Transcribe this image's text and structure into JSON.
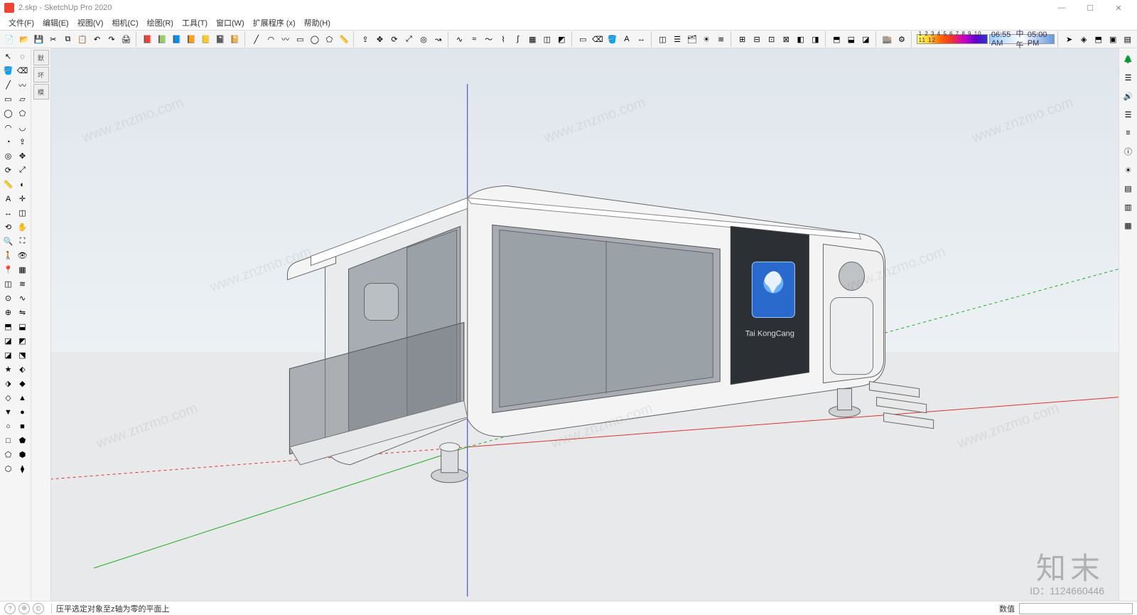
{
  "window": {
    "title": "2.skp - SketchUp Pro 2020",
    "controls": {
      "min": "—",
      "max": "☐",
      "close": "✕"
    }
  },
  "menu": {
    "items": [
      "文件(F)",
      "编辑(E)",
      "视图(V)",
      "相机(C)",
      "绘图(R)",
      "工具(T)",
      "窗口(W)",
      "扩展程序 (x)",
      "帮助(H)"
    ]
  },
  "toolbar_top": {
    "groups": [
      [
        "new",
        "open",
        "save",
        "cut",
        "copy",
        "paste",
        "undo",
        "redo",
        "print"
      ],
      [
        "book1",
        "book2",
        "book3",
        "book4",
        "book5",
        "book6",
        "book7"
      ],
      [
        "line",
        "arc",
        "freehand",
        "rect",
        "circle",
        "poly",
        "tape"
      ],
      [
        "push",
        "move",
        "rotate",
        "scale",
        "offset",
        "follow"
      ],
      [
        "curve1",
        "curve2",
        "curve3",
        "curve4",
        "curve5",
        "sandbox1",
        "sandbox2",
        "sandbox3"
      ],
      [
        "sel",
        "erase",
        "paint",
        "text",
        "dim"
      ],
      [
        "section",
        "layers",
        "outliner",
        "shadows",
        "fog"
      ],
      [
        "axis1",
        "axis2",
        "axis3",
        "axis4",
        "axis5",
        "axis6"
      ],
      [
        "solid1",
        "solid2",
        "solid3"
      ],
      [
        "warehouse",
        "ext"
      ]
    ],
    "gradient_label": "1 2 3 4 5 6 7 8 9 10 11 12",
    "time": {
      "left": "06:55 AM",
      "mid": "中午",
      "right": "05:00 PM"
    },
    "right_buttons": [
      "nav",
      "iso",
      "top",
      "front",
      "side"
    ]
  },
  "left_toolbar": {
    "tools": [
      "select",
      "lasso",
      "paint",
      "eraser",
      "line",
      "freehand",
      "rect",
      "rotrect",
      "circle",
      "polygon",
      "arc",
      "arc2",
      "pie",
      "push",
      "offset",
      "move",
      "rotate",
      "scale",
      "tape",
      "protractor",
      "text",
      "axes",
      "dim",
      "section",
      "orbit",
      "pan",
      "zoom",
      "zoomext",
      "walk",
      "look",
      "position",
      "sandbox",
      "sandbox2",
      "drape",
      "stamp",
      "smoove",
      "addDetail",
      "flip",
      "solid1",
      "solid2",
      "solid3",
      "solid4",
      "solid5",
      "solid6",
      "plugin1",
      "plugin2",
      "plugin3",
      "plugin4",
      "plugin5",
      "plugin6",
      "plugin7",
      "plugin8",
      "plugin9",
      "plugin10",
      "plugin11",
      "plugin12",
      "plugin13",
      "plugin14",
      "plugin15",
      "plugin16"
    ]
  },
  "tray": {
    "tabs": [
      "默",
      "坏",
      "模"
    ]
  },
  "side_icons": {
    "items": [
      "tree",
      "layers",
      "speaker",
      "style1",
      "style2",
      "entity",
      "shadow",
      "a",
      "b",
      "c"
    ]
  },
  "viewport": {
    "axis_colors": {
      "x": "#d33",
      "y": "#2a2",
      "z": "#33d"
    },
    "ground_color": "#e8e9ea",
    "sky_top": "#dfe6ec",
    "sky_bottom": "#f2f4f6",
    "model": {
      "body_color": "#f4f4f4",
      "body_shadow": "#cfd3d6",
      "window_color": "#9aa1a7",
      "accent_color": "#2c2f33",
      "screen_color": "#2a6acc",
      "label": "Tai KongCang"
    },
    "watermark_text": "www.znzmo.com",
    "watermark_big": "知末",
    "watermark_id": "ID：1124660446"
  },
  "status": {
    "hint": "压平选定对象至z轴为零的平面上",
    "measure_label": "数值"
  },
  "icon_glyphs": {
    "new": "📄",
    "open": "📂",
    "save": "💾",
    "cut": "✂",
    "copy": "⧉",
    "paste": "📋",
    "undo": "↶",
    "redo": "↷",
    "print": "🖨",
    "book1": "📕",
    "book2": "📗",
    "book3": "📘",
    "book4": "📙",
    "book5": "📒",
    "book6": "📓",
    "book7": "📔",
    "line": "╱",
    "arc": "◠",
    "freehand": "〰",
    "rect": "▭",
    "circle": "◯",
    "poly": "⬠",
    "tape": "📏",
    "push": "⇪",
    "move": "✥",
    "rotate": "⟳",
    "scale": "⤢",
    "offset": "◎",
    "follow": "↝",
    "curve1": "∿",
    "curve2": "≈",
    "curve3": "〜",
    "curve4": "⌇",
    "curve5": "∫",
    "sandbox1": "▦",
    "sandbox2": "◫",
    "sandbox3": "◩",
    "sel": "▭",
    "erase": "⌫",
    "paint": "🪣",
    "text": "A",
    "dim": "↔",
    "section": "◫",
    "layers": "☰",
    "outliner": "🗂",
    "shadows": "☀",
    "fog": "≋",
    "axis1": "⊞",
    "axis2": "⊟",
    "axis3": "⊡",
    "axis4": "⊠",
    "axis5": "◧",
    "axis6": "◨",
    "solid1": "⬒",
    "solid2": "⬓",
    "solid3": "◪",
    "warehouse": "🏬",
    "ext": "⚙",
    "nav": "➤",
    "iso": "◈",
    "top": "⬒",
    "front": "▣",
    "side": "▤",
    "select": "↖",
    "lasso": "◌",
    "eraser": "⌫",
    "rotrect": "▱",
    "polygon": "⬠",
    "arc2": "◡",
    "pie": "◔",
    "protractor": "◐",
    "axes": "✛",
    "orbit": "⟲",
    "pan": "✋",
    "zoom": "🔍",
    "zoomext": "⛶",
    "walk": "🚶",
    "look": "👁",
    "position": "📍",
    "sandbox": "▦",
    "drape": "≋",
    "stamp": "⊙",
    "smoove": "∿",
    "addDetail": "⊕",
    "flip": "⇋",
    "solid4": "◩",
    "solid5": "◪",
    "solid6": "⬔",
    "plugin1": "★",
    "plugin2": "⬖",
    "plugin3": "⬗",
    "plugin4": "◆",
    "plugin5": "◇",
    "plugin6": "▲",
    "plugin7": "▼",
    "plugin8": "●",
    "plugin9": "○",
    "plugin10": "■",
    "plugin11": "□",
    "plugin12": "⬟",
    "plugin13": "⬠",
    "plugin14": "⬢",
    "plugin15": "⬡",
    "plugin16": "⧫",
    "tree": "🌲",
    "speaker": "🔊",
    "style1": "☰",
    "style2": "≡",
    "entity": "ⓘ",
    "shadow": "☀",
    "a": "▤",
    "b": "▥",
    "c": "▦"
  }
}
